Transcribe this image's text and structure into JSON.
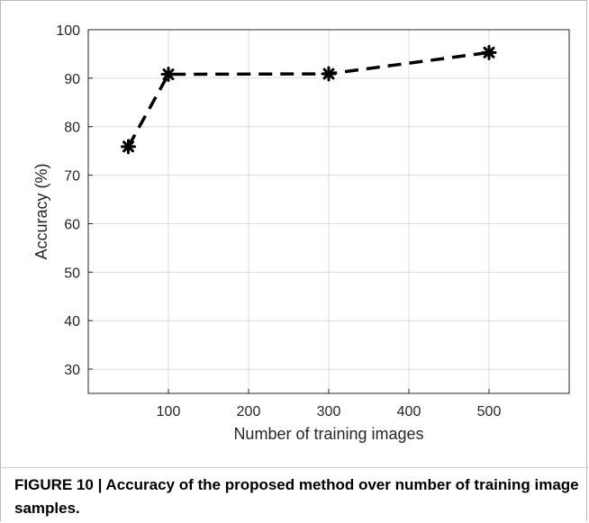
{
  "chart_data": {
    "type": "line",
    "xlabel": "Number of training images",
    "ylabel": "Accuracy (%)",
    "xlim": [
      0,
      600
    ],
    "ylim": [
      25,
      100
    ],
    "xticks": [
      100,
      200,
      300,
      400,
      500
    ],
    "yticks": [
      30,
      40,
      50,
      60,
      70,
      80,
      90,
      100
    ],
    "grid": true,
    "series": [
      {
        "x": [
          50,
          100,
          300,
          500
        ],
        "y": [
          75.9,
          90.8,
          90.9,
          95.3
        ],
        "color": "#000000",
        "line_style": "dashed",
        "marker": "asterisk"
      }
    ]
  },
  "caption": {
    "text": "FIGURE 10 | Accuracy of the proposed method over number of training image samples."
  }
}
